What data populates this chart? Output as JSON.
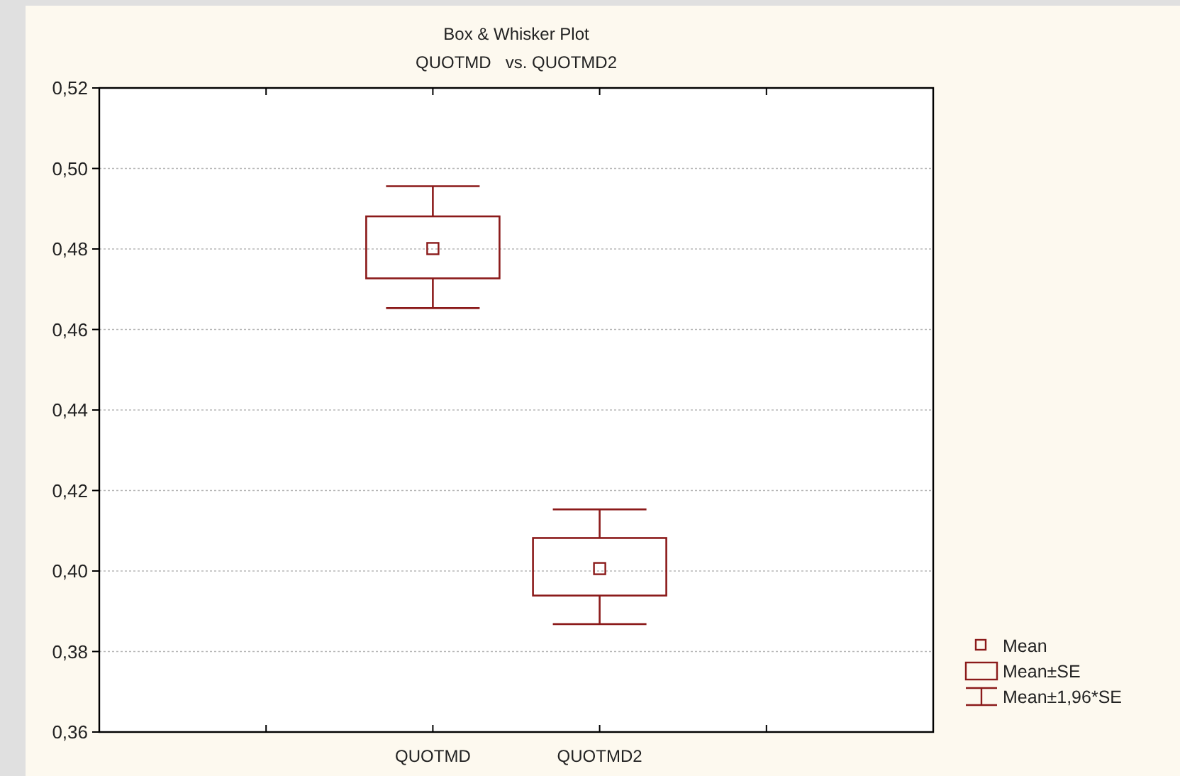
{
  "chart_data": {
    "type": "box",
    "title": "Box & Whisker Plot",
    "subtitle": "QUOTMD   vs. QUOTMD2",
    "categories": [
      "QUOTMD",
      "QUOTMD2"
    ],
    "series": [
      {
        "color": "#8b1a1a",
        "boxes": [
          {
            "low": 0.4653,
            "q1": 0.4727,
            "median": 0.4801,
            "q3": 0.4881,
            "high": 0.4956
          },
          {
            "low": 0.3868,
            "q1": 0.3939,
            "median": 0.4006,
            "q3": 0.4082,
            "high": 0.4153
          }
        ]
      }
    ],
    "ylim": [
      0.36,
      0.52
    ],
    "yticks": [
      {
        "value": 0.36,
        "label": "0,36"
      },
      {
        "value": 0.38,
        "label": "0,38"
      },
      {
        "value": 0.4,
        "label": "0,40"
      },
      {
        "value": 0.42,
        "label": "0,42"
      },
      {
        "value": 0.44,
        "label": "0,44"
      },
      {
        "value": 0.46,
        "label": "0,46"
      },
      {
        "value": 0.48,
        "label": "0,48"
      },
      {
        "value": 0.5,
        "label": "0,50"
      },
      {
        "value": 0.52,
        "label": "0,52"
      }
    ],
    "grid": "y",
    "annotations": [
      "Mean",
      "Mean±SE",
      "Mean±1,96*SE"
    ]
  }
}
